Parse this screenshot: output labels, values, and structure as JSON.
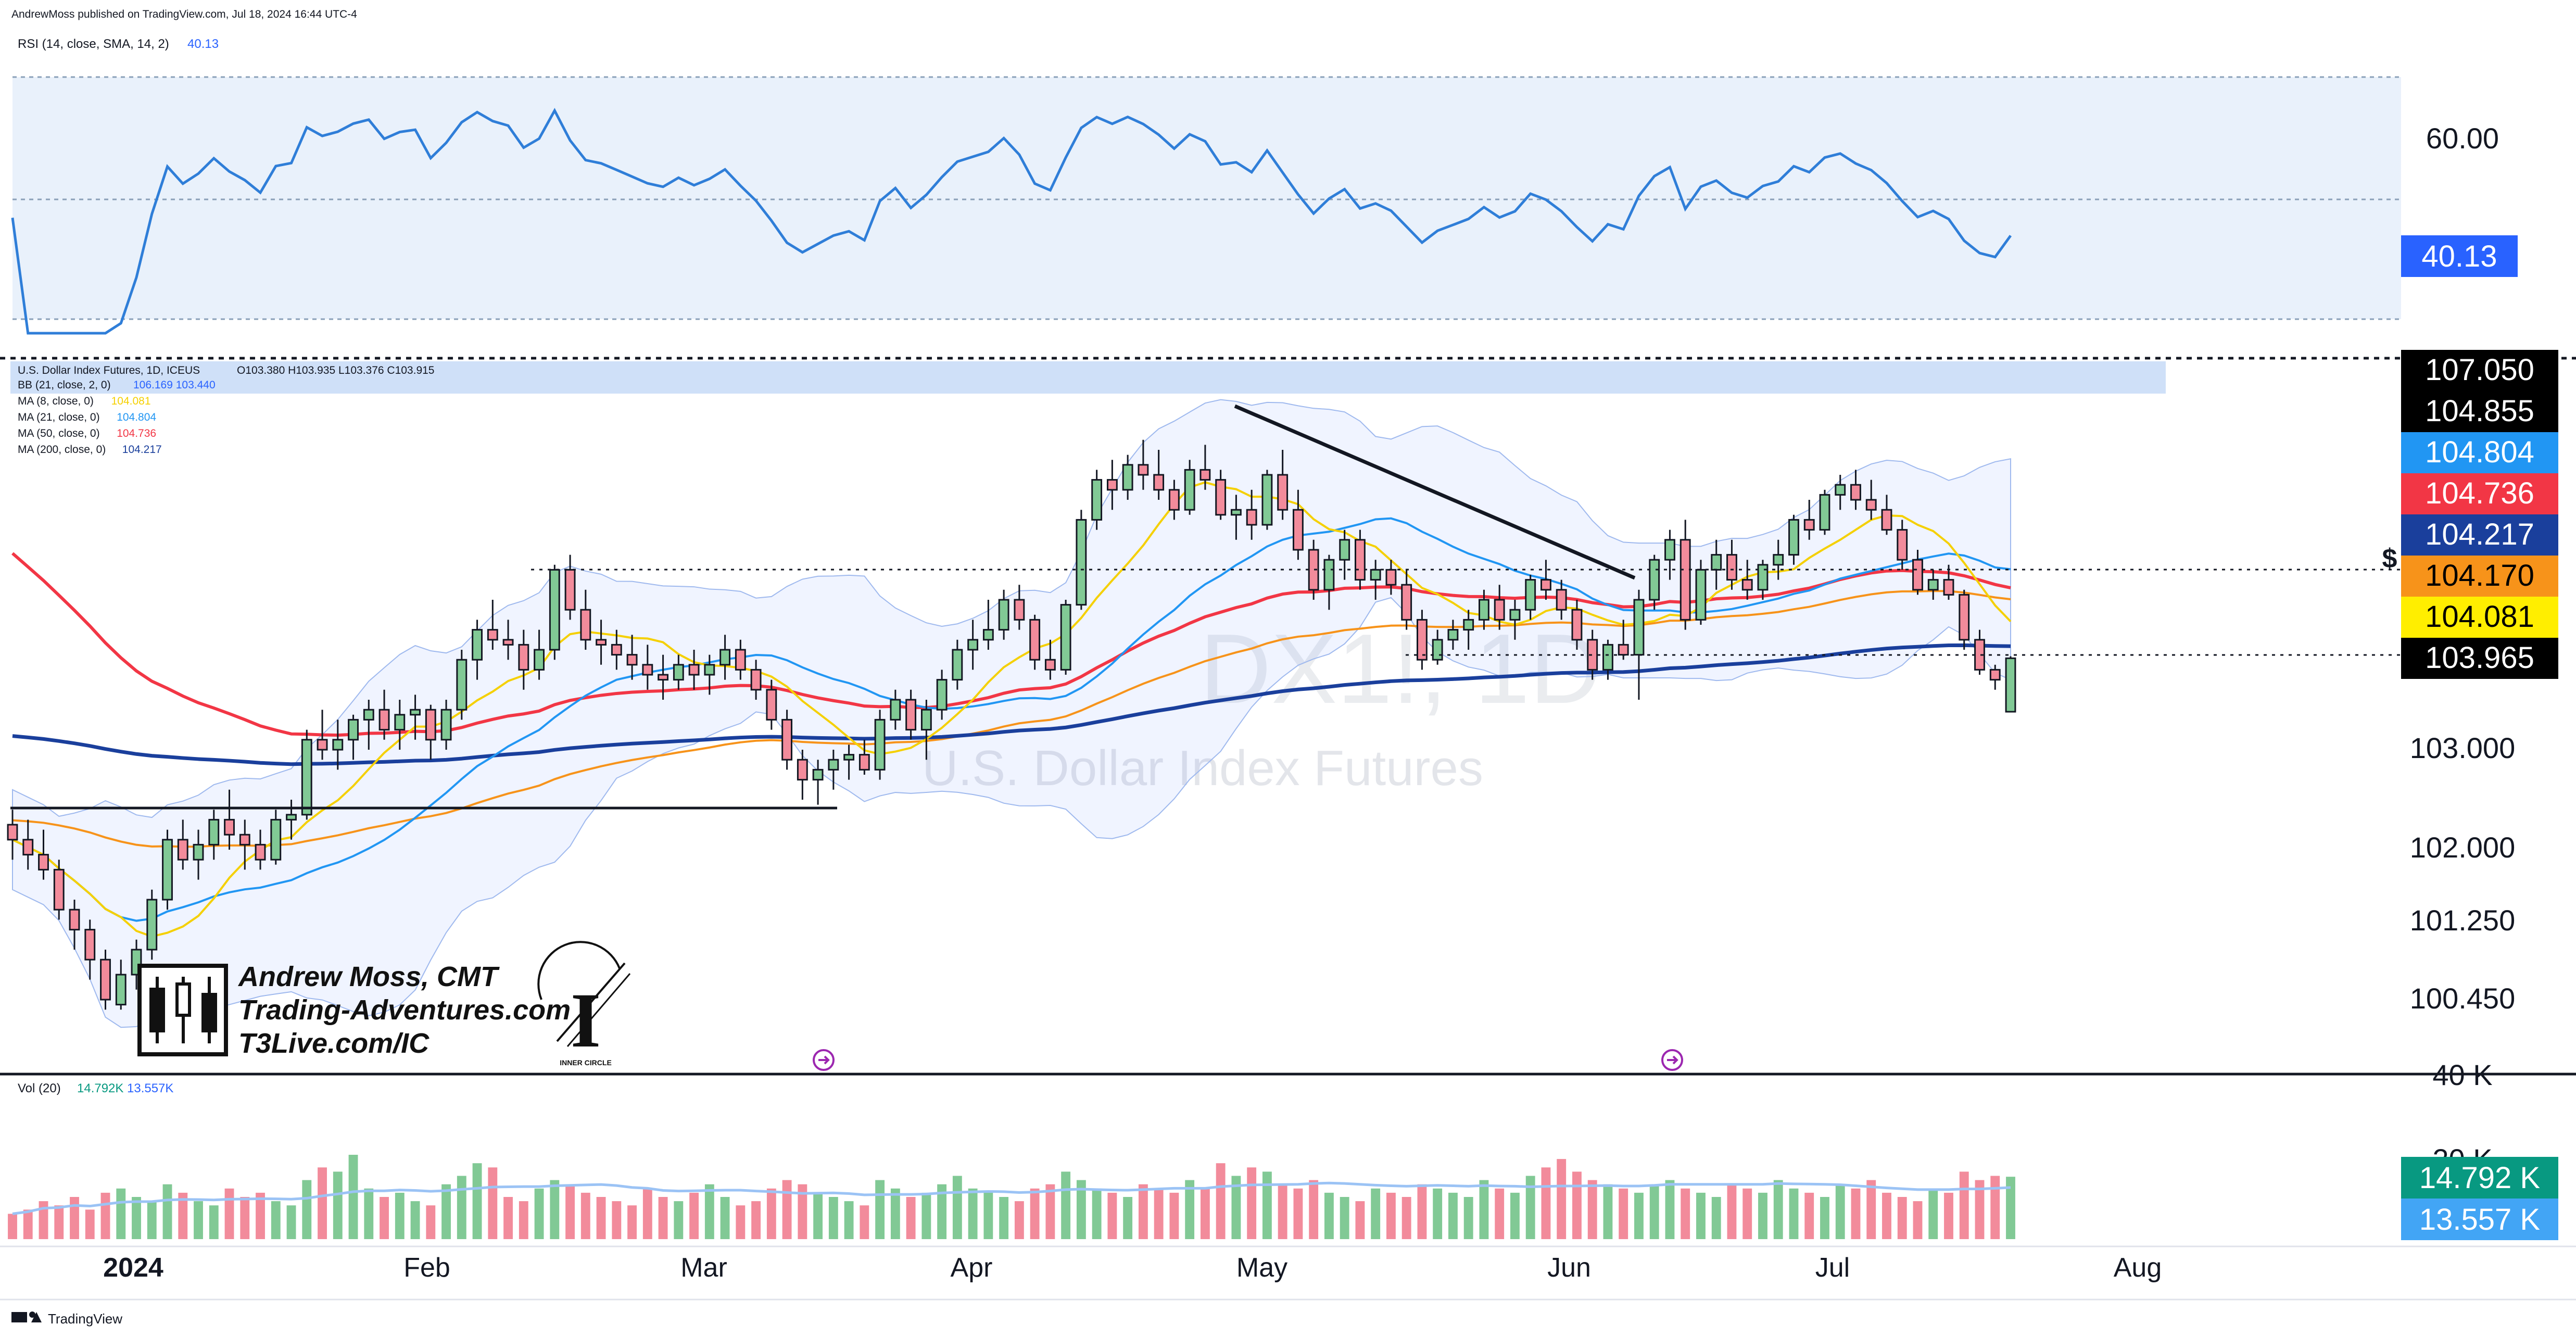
{
  "header": {
    "published": "AndrewMoss published on TradingView.com, Jul 18, 2024 16:44 UTC-4"
  },
  "rsi_pane": {
    "legend": "RSI (14, close, SMA, 14, 2)",
    "value": "40.13",
    "axis_labels": [
      "60.00"
    ]
  },
  "price_pane": {
    "legend_title": "U.S. Dollar Index Futures, 1D, ICEUS",
    "ohlc": "O103.380  H103.935  L103.376  C103.915",
    "indicators": [
      {
        "name": "BB (21, close, 2, 0)",
        "values": "106.169  103.440",
        "color": "#2962ff"
      },
      {
        "name": "MA (8, close, 0)",
        "values": "104.081",
        "color": "#f5d000"
      },
      {
        "name": "MA (21, close, 0)",
        "values": "104.804",
        "color": "#2196f3"
      },
      {
        "name": "MA (50, close, 0)",
        "values": "104.736",
        "color": "#f23645"
      },
      {
        "name": "MA (200, close, 0)",
        "values": "104.217",
        "color": "#1a3f9c"
      }
    ],
    "watermark_symbol": "DX1!, 1D",
    "watermark_name": "U.S. Dollar Index Futures",
    "currency_marker": "$",
    "price_tags": [
      {
        "label": "107.050",
        "bg": "#000000",
        "fg": "#ffffff"
      },
      {
        "label": "104.855",
        "bg": "#000000",
        "fg": "#ffffff"
      },
      {
        "label": "104.804",
        "bg": "#2196f3",
        "fg": "#ffffff"
      },
      {
        "label": "104.736",
        "bg": "#f23645",
        "fg": "#ffffff"
      },
      {
        "label": "104.217",
        "bg": "#1a3f9c",
        "fg": "#ffffff"
      },
      {
        "label": "104.170",
        "bg": "#f7931a",
        "fg": "#000000"
      },
      {
        "label": "104.081",
        "bg": "#ffee00",
        "fg": "#000000"
      },
      {
        "label": "103.965",
        "bg": "#000000",
        "fg": "#ffffff"
      }
    ],
    "axis_labels": [
      "103.000",
      "102.000",
      "101.250",
      "100.450"
    ],
    "branding": {
      "author": "Andrew Moss, CMT",
      "site": "Trading-Adventures.com",
      "link": "T3Live.com/IC",
      "badge": "INNER CIRCLE"
    }
  },
  "volume_pane": {
    "legend_name": "Vol (20)",
    "legend_value_1": "14.792K",
    "legend_value_2": "13.557K",
    "axis_labels": [
      "40 K",
      "20 K"
    ],
    "tags": [
      {
        "label": "14.792 K",
        "bg": "#089981",
        "fg": "#ffffff"
      },
      {
        "label": "13.557 K",
        "bg": "#42a5f5",
        "fg": "#ffffff"
      }
    ]
  },
  "time_axis": [
    "2024",
    "Feb",
    "Mar",
    "Apr",
    "May",
    "Jun",
    "Jul",
    "Aug"
  ],
  "footer": {
    "brand": "TradingView"
  },
  "chart_data": {
    "type": "candlestick",
    "title": "U.S. Dollar Index Futures, 1D, ICEUS",
    "ylim": [
      100.0,
      107.3
    ],
    "bullish_color": "#81c995",
    "bearish_color": "#f28b9b",
    "candles": [
      [
        102.25,
        102.4,
        101.9,
        102.1
      ],
      [
        102.1,
        102.3,
        101.8,
        101.95
      ],
      [
        101.95,
        102.2,
        101.7,
        101.8
      ],
      [
        101.8,
        101.9,
        101.3,
        101.4
      ],
      [
        101.4,
        101.5,
        101.0,
        101.2
      ],
      [
        101.2,
        101.3,
        100.7,
        100.9
      ],
      [
        100.9,
        101.0,
        100.4,
        100.5
      ],
      [
        100.45,
        100.9,
        100.4,
        100.75
      ],
      [
        100.75,
        101.1,
        100.6,
        101.0
      ],
      [
        101.0,
        101.6,
        100.9,
        101.5
      ],
      [
        101.5,
        102.2,
        101.4,
        102.1
      ],
      [
        102.1,
        102.3,
        101.8,
        101.9
      ],
      [
        101.9,
        102.2,
        101.7,
        102.05
      ],
      [
        102.05,
        102.4,
        101.9,
        102.3
      ],
      [
        102.3,
        102.6,
        102.0,
        102.15
      ],
      [
        102.15,
        102.3,
        101.8,
        102.05
      ],
      [
        102.05,
        102.2,
        101.8,
        101.9
      ],
      [
        101.9,
        102.4,
        101.85,
        102.3
      ],
      [
        102.3,
        102.5,
        102.1,
        102.35
      ],
      [
        102.35,
        103.2,
        102.3,
        103.1
      ],
      [
        103.1,
        103.4,
        102.9,
        103.0
      ],
      [
        103.0,
        103.3,
        102.8,
        103.1
      ],
      [
        103.1,
        103.35,
        102.9,
        103.3
      ],
      [
        103.3,
        103.5,
        103.0,
        103.4
      ],
      [
        103.4,
        103.6,
        103.1,
        103.2
      ],
      [
        103.2,
        103.5,
        103.0,
        103.35
      ],
      [
        103.35,
        103.55,
        103.1,
        103.4
      ],
      [
        103.4,
        103.45,
        102.9,
        103.1
      ],
      [
        103.1,
        103.5,
        103.0,
        103.4
      ],
      [
        103.4,
        104.0,
        103.3,
        103.9
      ],
      [
        103.9,
        104.3,
        103.7,
        104.2
      ],
      [
        104.2,
        104.5,
        104.0,
        104.1
      ],
      [
        104.1,
        104.3,
        103.9,
        104.05
      ],
      [
        104.05,
        104.2,
        103.6,
        103.8
      ],
      [
        103.8,
        104.2,
        103.7,
        104.0
      ],
      [
        104.0,
        104.85,
        103.9,
        104.8
      ],
      [
        104.8,
        104.95,
        104.3,
        104.4
      ],
      [
        104.4,
        104.6,
        104.0,
        104.1
      ],
      [
        104.1,
        104.3,
        103.85,
        104.05
      ],
      [
        104.05,
        104.2,
        103.8,
        103.95
      ],
      [
        103.95,
        104.15,
        103.7,
        103.85
      ],
      [
        103.85,
        104.05,
        103.6,
        103.75
      ],
      [
        103.75,
        103.95,
        103.5,
        103.7
      ],
      [
        103.7,
        103.95,
        103.6,
        103.85
      ],
      [
        103.85,
        104.0,
        103.6,
        103.75
      ],
      [
        103.75,
        103.95,
        103.55,
        103.85
      ],
      [
        103.85,
        104.15,
        103.7,
        104.0
      ],
      [
        104.0,
        104.1,
        103.7,
        103.8
      ],
      [
        103.8,
        103.9,
        103.5,
        103.6
      ],
      [
        103.6,
        103.7,
        103.2,
        103.3
      ],
      [
        103.3,
        103.4,
        102.8,
        102.9
      ],
      [
        102.9,
        103.0,
        102.5,
        102.7
      ],
      [
        102.7,
        102.9,
        102.45,
        102.8
      ],
      [
        102.8,
        103.0,
        102.6,
        102.9
      ],
      [
        102.9,
        103.05,
        102.7,
        102.95
      ],
      [
        102.95,
        103.1,
        102.75,
        102.8
      ],
      [
        102.8,
        103.4,
        102.7,
        103.3
      ],
      [
        103.3,
        103.6,
        103.2,
        103.5
      ],
      [
        103.5,
        103.6,
        103.1,
        103.2
      ],
      [
        103.2,
        103.5,
        102.9,
        103.4
      ],
      [
        103.4,
        103.8,
        103.3,
        103.7
      ],
      [
        103.7,
        104.1,
        103.6,
        104.0
      ],
      [
        104.0,
        104.3,
        103.8,
        104.1
      ],
      [
        104.1,
        104.5,
        104.0,
        104.2
      ],
      [
        104.2,
        104.6,
        104.1,
        104.5
      ],
      [
        104.5,
        104.65,
        104.2,
        104.3
      ],
      [
        104.3,
        104.35,
        103.8,
        103.9
      ],
      [
        103.9,
        104.1,
        103.7,
        103.8
      ],
      [
        103.8,
        104.5,
        103.75,
        104.45
      ],
      [
        104.45,
        105.4,
        104.4,
        105.3
      ],
      [
        105.3,
        105.8,
        105.2,
        105.7
      ],
      [
        105.7,
        105.9,
        105.4,
        105.6
      ],
      [
        105.6,
        105.95,
        105.5,
        105.85
      ],
      [
        105.85,
        106.1,
        105.6,
        105.75
      ],
      [
        105.75,
        106.0,
        105.5,
        105.6
      ],
      [
        105.6,
        105.7,
        105.3,
        105.4
      ],
      [
        105.4,
        105.9,
        105.35,
        105.8
      ],
      [
        105.8,
        106.05,
        105.6,
        105.7
      ],
      [
        105.7,
        105.8,
        105.3,
        105.35
      ],
      [
        105.35,
        105.55,
        105.1,
        105.4
      ],
      [
        105.4,
        105.6,
        105.1,
        105.25
      ],
      [
        105.25,
        105.8,
        105.2,
        105.75
      ],
      [
        105.75,
        106.0,
        105.3,
        105.4
      ],
      [
        105.4,
        105.6,
        104.9,
        105.0
      ],
      [
        105.0,
        105.1,
        104.5,
        104.6
      ],
      [
        104.6,
        104.95,
        104.4,
        104.9
      ],
      [
        104.9,
        105.2,
        104.7,
        105.1
      ],
      [
        105.1,
        105.2,
        104.6,
        104.7
      ],
      [
        104.7,
        104.9,
        104.5,
        104.8
      ],
      [
        104.8,
        104.9,
        104.55,
        104.65
      ],
      [
        104.65,
        104.8,
        104.2,
        104.3
      ],
      [
        104.3,
        104.4,
        103.8,
        103.9
      ],
      [
        103.9,
        104.2,
        103.85,
        104.1
      ],
      [
        104.1,
        104.3,
        104.0,
        104.2
      ],
      [
        104.2,
        104.4,
        104.0,
        104.3
      ],
      [
        104.3,
        104.6,
        104.2,
        104.5
      ],
      [
        104.5,
        104.65,
        104.2,
        104.3
      ],
      [
        104.3,
        104.5,
        104.1,
        104.4
      ],
      [
        104.4,
        104.75,
        104.3,
        104.7
      ],
      [
        104.7,
        104.9,
        104.5,
        104.6
      ],
      [
        104.6,
        104.7,
        104.3,
        104.4
      ],
      [
        104.4,
        104.5,
        104.0,
        104.1
      ],
      [
        104.1,
        104.2,
        103.7,
        103.8
      ],
      [
        103.8,
        104.1,
        103.7,
        104.05
      ],
      [
        104.05,
        104.3,
        103.9,
        103.95
      ],
      [
        103.95,
        104.6,
        103.5,
        104.5
      ],
      [
        104.5,
        104.95,
        104.4,
        104.9
      ],
      [
        104.9,
        105.2,
        104.7,
        105.1
      ],
      [
        105.1,
        105.3,
        104.2,
        104.3
      ],
      [
        104.3,
        104.9,
        104.25,
        104.8
      ],
      [
        104.8,
        105.1,
        104.6,
        104.95
      ],
      [
        104.95,
        105.1,
        104.6,
        104.7
      ],
      [
        104.7,
        104.9,
        104.5,
        104.6
      ],
      [
        104.6,
        104.9,
        104.5,
        104.85
      ],
      [
        104.85,
        105.1,
        104.7,
        104.95
      ],
      [
        104.95,
        105.35,
        104.85,
        105.3
      ],
      [
        105.3,
        105.5,
        105.1,
        105.2
      ],
      [
        105.2,
        105.6,
        105.15,
        105.55
      ],
      [
        105.55,
        105.75,
        105.4,
        105.65
      ],
      [
        105.65,
        105.8,
        105.4,
        105.5
      ],
      [
        105.5,
        105.7,
        105.3,
        105.4
      ],
      [
        105.4,
        105.55,
        105.15,
        105.2
      ],
      [
        105.2,
        105.3,
        104.8,
        104.9
      ],
      [
        104.9,
        105.0,
        104.55,
        104.6
      ],
      [
        104.6,
        104.8,
        104.5,
        104.7
      ],
      [
        104.7,
        104.85,
        104.5,
        104.55
      ],
      [
        104.55,
        104.6,
        104.0,
        104.1
      ],
      [
        104.1,
        104.2,
        103.75,
        103.8
      ],
      [
        103.8,
        103.85,
        103.6,
        103.7
      ],
      [
        103.38,
        103.935,
        103.376,
        103.915
      ]
    ],
    "volumes_k": [
      6,
      7,
      9,
      8,
      10,
      7,
      11,
      12,
      10,
      9,
      13,
      11,
      9,
      8,
      12,
      10,
      11,
      9,
      8,
      14,
      17,
      16,
      20,
      12,
      10,
      11,
      9,
      8,
      13,
      15,
      18,
      17,
      10,
      9,
      12,
      14,
      13,
      11,
      10,
      9,
      8,
      12,
      10,
      9,
      11,
      13,
      10,
      8,
      9,
      12,
      14,
      13,
      11,
      10,
      9,
      8,
      14,
      12,
      10,
      11,
      13,
      15,
      12,
      11,
      10,
      9,
      12,
      13,
      16,
      14,
      12,
      11,
      10,
      13,
      12,
      11,
      14,
      12,
      18,
      15,
      17,
      16,
      13,
      12,
      14,
      11,
      10,
      9,
      12,
      11,
      10,
      13,
      12,
      11,
      10,
      14,
      12,
      11,
      15,
      17,
      19,
      16,
      14,
      13,
      12,
      11,
      13,
      14,
      12,
      11,
      10,
      13,
      12,
      11,
      14,
      12,
      11,
      10,
      13,
      12,
      14,
      11,
      10,
      9,
      12,
      11,
      16,
      14,
      15,
      14.792
    ]
  }
}
